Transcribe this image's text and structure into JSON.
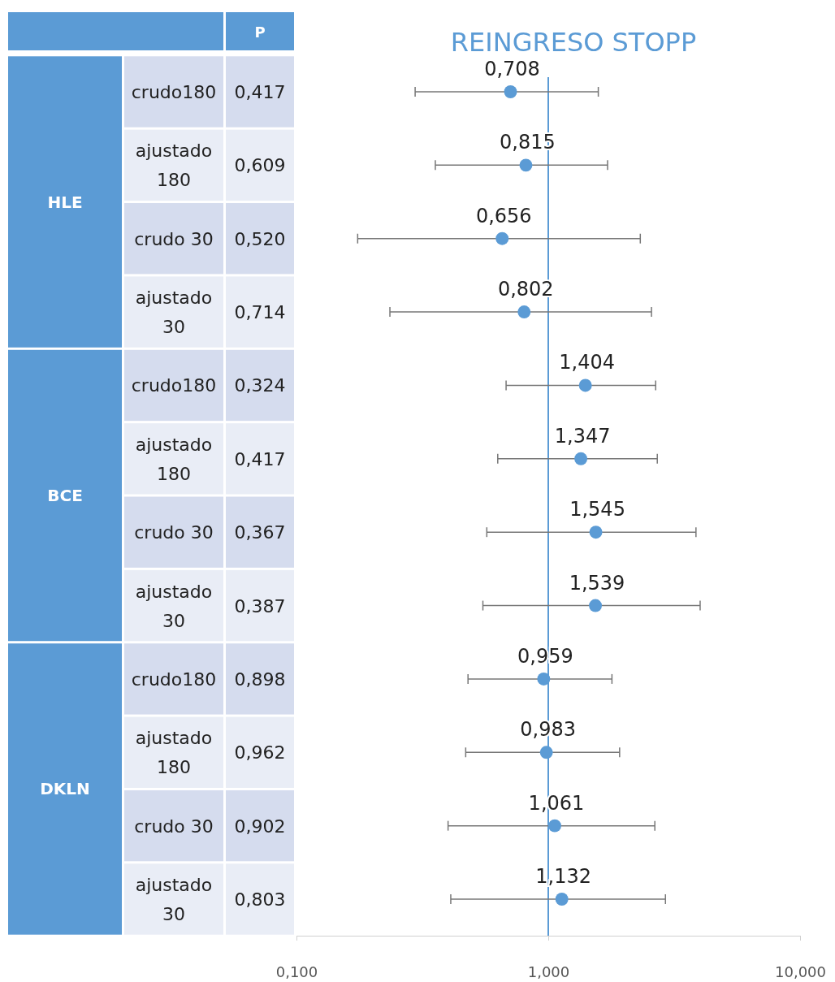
{
  "chart_data": {
    "type": "scatter",
    "orientation": "horizontal",
    "title": "REINGRESO STOPP",
    "categories": [
      "crudo180",
      "ajustado 180",
      "crudo 30",
      "ajustado 30",
      "crudo180",
      "ajustado 180",
      "crudo 30",
      "ajustado 30",
      "crudo180",
      "ajustado 180",
      "crudo 30",
      "ajustado 30"
    ],
    "values": [
      0.708,
      0.815,
      0.656,
      0.802,
      1.404,
      1.347,
      1.545,
      1.539,
      0.959,
      0.983,
      1.061,
      1.132
    ],
    "value_labels": [
      "0,708",
      "0,815",
      "0,656",
      "0,802",
      "1,404",
      "1,347",
      "1,545",
      "1,539",
      "0,959",
      "0,983",
      "1,061",
      "1,132"
    ],
    "errors": [
      [
        0.296,
        1.58
      ],
      [
        0.356,
        1.72
      ],
      [
        0.175,
        2.32
      ],
      [
        0.235,
        2.57
      ],
      [
        0.68,
        2.67
      ],
      [
        0.63,
        2.71
      ],
      [
        0.57,
        3.86
      ],
      [
        0.55,
        4.01
      ],
      [
        0.48,
        1.79
      ],
      [
        0.47,
        1.92
      ],
      [
        0.4,
        2.65
      ],
      [
        0.41,
        2.92
      ]
    ],
    "color": "#5b9bd5",
    "marker": "circle",
    "log": "x",
    "xlim": [
      0.1,
      10
    ],
    "xticks": [
      {
        "value": 0.1,
        "label": "0,100"
      },
      {
        "value": 1,
        "label": "1,000"
      },
      {
        "value": 10,
        "label": "10,000"
      }
    ],
    "tick_labels": "x",
    "ref_lines": [
      {
        "axis": "x",
        "value": 1,
        "color": "#5b9bd5"
      }
    ],
    "annotations": [
      "P",
      "HLE",
      "BCE",
      "DKLN",
      "0,417",
      "0,609",
      "0,520",
      "0,714",
      "0,324",
      "0,417",
      "0,367",
      "0,387",
      "0,898",
      "0,962",
      "0,902",
      "0,803"
    ]
  }
}
